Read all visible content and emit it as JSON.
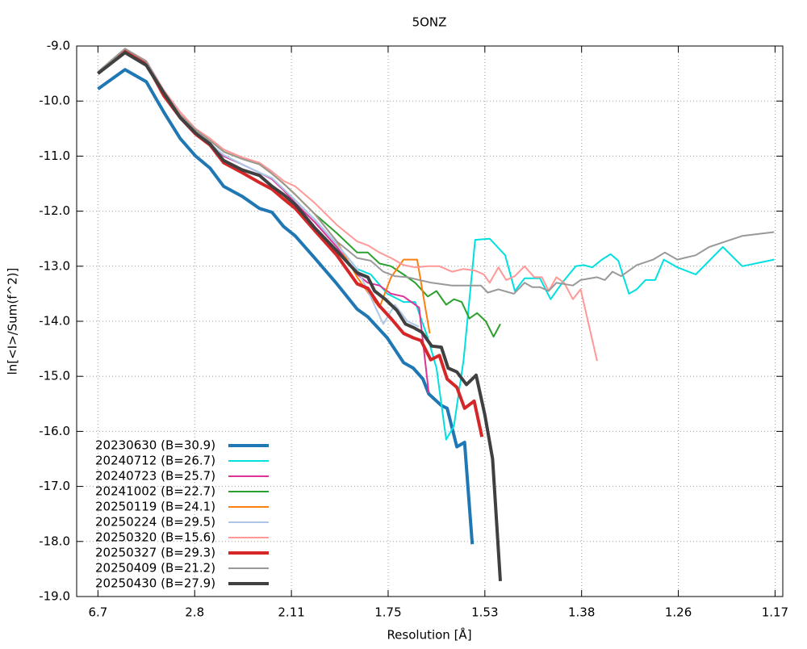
{
  "chart_data": {
    "type": "line",
    "title": "5ONZ",
    "x_label": "Resolution [Å]",
    "y_label": "ln[<I>/Sum(f^2)]",
    "xlim": [
      0,
      0.73
    ],
    "ylim": [
      -19,
      -9
    ],
    "grid": true,
    "legend_position": "lower-left",
    "xticks": [
      {
        "value": 0.022,
        "label": "6.7"
      },
      {
        "value": 0.122,
        "label": "2.8"
      },
      {
        "value": 0.222,
        "label": "2.11"
      },
      {
        "value": 0.322,
        "label": "1.75"
      },
      {
        "value": 0.422,
        "label": "1.53"
      },
      {
        "value": 0.522,
        "label": "1.38"
      },
      {
        "value": 0.622,
        "label": "1.26"
      },
      {
        "value": 0.722,
        "label": "1.17"
      }
    ],
    "yticks": [
      {
        "value": -9,
        "label": "-9.0"
      },
      {
        "value": -10,
        "label": "-10.0"
      },
      {
        "value": -11,
        "label": "-11.0"
      },
      {
        "value": -12,
        "label": "-12.0"
      },
      {
        "value": -13,
        "label": "-13.0"
      },
      {
        "value": -14,
        "label": "-14.0"
      },
      {
        "value": -15,
        "label": "-15.0"
      },
      {
        "value": -16,
        "label": "-16.0"
      },
      {
        "value": -17,
        "label": "-17.0"
      },
      {
        "value": -18,
        "label": "-18.0"
      },
      {
        "value": -19,
        "label": "-19.0"
      }
    ],
    "series": [
      {
        "name": "20230630 (B=30.9)",
        "color": "#1f77b4",
        "line_width": 4,
        "x": [
          0.022,
          0.05,
          0.072,
          0.09,
          0.107,
          0.123,
          0.138,
          0.152,
          0.171,
          0.189,
          0.202,
          0.214,
          0.226,
          0.246,
          0.269,
          0.29,
          0.301,
          0.321,
          0.338,
          0.348,
          0.358,
          0.364,
          0.377,
          0.383,
          0.393,
          0.401,
          0.409
        ],
        "values": [
          -9.78,
          -9.43,
          -9.65,
          -10.2,
          -10.68,
          -11.0,
          -11.22,
          -11.55,
          -11.73,
          -11.95,
          -12.02,
          -12.28,
          -12.45,
          -12.85,
          -13.32,
          -13.78,
          -13.92,
          -14.3,
          -14.75,
          -14.85,
          -15.05,
          -15.32,
          -15.53,
          -15.58,
          -16.28,
          -16.2,
          -18.05
        ]
      },
      {
        "name": "20240712 (B=26.7)",
        "color": "#00e0e0",
        "line_width": 2,
        "x": [
          0.022,
          0.05,
          0.072,
          0.09,
          0.107,
          0.123,
          0.138,
          0.152,
          0.171,
          0.189,
          0.202,
          0.214,
          0.226,
          0.246,
          0.269,
          0.29,
          0.304,
          0.321,
          0.338,
          0.35,
          0.363,
          0.372,
          0.382,
          0.39,
          0.4,
          0.412,
          0.427,
          0.443,
          0.453,
          0.463,
          0.479,
          0.49,
          0.502,
          0.516,
          0.524,
          0.533,
          0.543,
          0.552,
          0.56,
          0.571,
          0.579,
          0.588,
          0.598,
          0.607,
          0.621,
          0.64,
          0.668,
          0.688,
          0.721
        ],
        "values": [
          -9.48,
          -9.08,
          -9.3,
          -9.85,
          -10.28,
          -10.58,
          -10.78,
          -10.98,
          -11.15,
          -11.3,
          -11.4,
          -11.6,
          -11.8,
          -12.15,
          -12.6,
          -13.05,
          -13.15,
          -13.5,
          -13.65,
          -13.65,
          -14.3,
          -14.85,
          -16.15,
          -15.9,
          -14.7,
          -12.52,
          -12.5,
          -12.8,
          -13.45,
          -13.22,
          -13.22,
          -13.6,
          -13.3,
          -13.0,
          -12.98,
          -13.02,
          -12.88,
          -12.78,
          -12.9,
          -13.5,
          -13.42,
          -13.25,
          -13.25,
          -12.88,
          -13.02,
          -13.15,
          -12.65,
          -13.0,
          -12.88
        ]
      },
      {
        "name": "20240723 (B=25.7)",
        "color": "#dd3497",
        "line_width": 2,
        "x": [
          0.022,
          0.05,
          0.072,
          0.09,
          0.107,
          0.123,
          0.138,
          0.152,
          0.171,
          0.189,
          0.202,
          0.214,
          0.226,
          0.246,
          0.269,
          0.29,
          0.301,
          0.313,
          0.325,
          0.338,
          0.346,
          0.354,
          0.364
        ],
        "values": [
          -9.5,
          -9.1,
          -9.32,
          -9.88,
          -10.3,
          -10.6,
          -10.8,
          -11.0,
          -11.15,
          -11.3,
          -11.42,
          -11.62,
          -11.85,
          -12.2,
          -12.65,
          -13.15,
          -13.3,
          -13.35,
          -13.5,
          -13.55,
          -13.65,
          -13.75,
          -15.3
        ]
      },
      {
        "name": "20241002 (B=22.7)",
        "color": "#2ca02c",
        "line_width": 2,
        "x": [
          0.022,
          0.05,
          0.072,
          0.09,
          0.107,
          0.123,
          0.138,
          0.152,
          0.171,
          0.189,
          0.202,
          0.214,
          0.226,
          0.246,
          0.269,
          0.29,
          0.301,
          0.313,
          0.325,
          0.338,
          0.35,
          0.363,
          0.372,
          0.382,
          0.39,
          0.398,
          0.406,
          0.414,
          0.423,
          0.431,
          0.438
        ],
        "values": [
          -9.47,
          -9.05,
          -9.28,
          -9.82,
          -10.25,
          -10.52,
          -10.72,
          -10.92,
          -11.05,
          -11.15,
          -11.32,
          -11.5,
          -11.7,
          -12.05,
          -12.4,
          -12.75,
          -12.75,
          -12.95,
          -13.0,
          -13.15,
          -13.3,
          -13.55,
          -13.45,
          -13.7,
          -13.6,
          -13.65,
          -13.95,
          -13.85,
          -14.0,
          -14.28,
          -14.05
        ]
      },
      {
        "name": "20250119 (B=24.1)",
        "color": "#ff7f0e",
        "line_width": 2,
        "x": [
          0.022,
          0.05,
          0.072,
          0.09,
          0.107,
          0.123,
          0.138,
          0.152,
          0.171,
          0.189,
          0.202,
          0.214,
          0.226,
          0.246,
          0.269,
          0.29,
          0.304,
          0.313,
          0.325,
          0.338,
          0.352,
          0.365
        ],
        "values": [
          -9.47,
          -9.05,
          -9.28,
          -9.82,
          -10.25,
          -10.52,
          -10.72,
          -10.92,
          -11.05,
          -11.15,
          -11.32,
          -11.5,
          -11.7,
          -12.05,
          -12.55,
          -13.2,
          -13.55,
          -13.75,
          -13.2,
          -12.88,
          -12.88,
          -14.22
        ]
      },
      {
        "name": "20250224 (B=29.5)",
        "color": "#aec7e8",
        "line_width": 2,
        "x": [
          0.022,
          0.05,
          0.072,
          0.09,
          0.107,
          0.123,
          0.138,
          0.152,
          0.171,
          0.189,
          0.202,
          0.214,
          0.226,
          0.246,
          0.269,
          0.29,
          0.301,
          0.317,
          0.329,
          0.342,
          0.354
        ],
        "values": [
          -9.48,
          -9.08,
          -9.3,
          -9.85,
          -10.28,
          -10.58,
          -10.78,
          -10.98,
          -11.15,
          -11.3,
          -11.4,
          -11.6,
          -11.8,
          -12.15,
          -12.6,
          -13.05,
          -13.45,
          -14.05,
          -13.7,
          -14.0,
          -14.1
        ]
      },
      {
        "name": "20250320 (B=15.6)",
        "color": "#ff9896",
        "line_width": 2,
        "x": [
          0.022,
          0.05,
          0.072,
          0.09,
          0.107,
          0.123,
          0.138,
          0.152,
          0.171,
          0.189,
          0.202,
          0.214,
          0.226,
          0.246,
          0.269,
          0.29,
          0.301,
          0.313,
          0.325,
          0.338,
          0.35,
          0.363,
          0.375,
          0.388,
          0.4,
          0.412,
          0.421,
          0.427,
          0.436,
          0.444,
          0.453,
          0.463,
          0.473,
          0.481,
          0.488,
          0.496,
          0.504,
          0.513,
          0.521,
          0.538
        ],
        "values": [
          -9.47,
          -9.05,
          -9.27,
          -9.8,
          -10.2,
          -10.5,
          -10.68,
          -10.88,
          -11.02,
          -11.12,
          -11.28,
          -11.45,
          -11.55,
          -11.85,
          -12.25,
          -12.55,
          -12.62,
          -12.75,
          -12.85,
          -12.98,
          -13.02,
          -13.0,
          -13.0,
          -13.1,
          -13.05,
          -13.08,
          -13.15,
          -13.3,
          -13.02,
          -13.25,
          -13.18,
          -13.0,
          -13.2,
          -13.2,
          -13.45,
          -13.2,
          -13.3,
          -13.6,
          -13.42,
          -14.72
        ]
      },
      {
        "name": "20250327 (B=29.3)",
        "color": "#d62728",
        "line_width": 4,
        "x": [
          0.022,
          0.05,
          0.072,
          0.09,
          0.107,
          0.123,
          0.138,
          0.152,
          0.171,
          0.189,
          0.202,
          0.214,
          0.226,
          0.246,
          0.269,
          0.29,
          0.301,
          0.313,
          0.325,
          0.338,
          0.348,
          0.356,
          0.366,
          0.375,
          0.383,
          0.393,
          0.401,
          0.411,
          0.419
        ],
        "values": [
          -9.5,
          -9.08,
          -9.32,
          -9.9,
          -10.3,
          -10.6,
          -10.8,
          -11.12,
          -11.3,
          -11.48,
          -11.6,
          -11.78,
          -11.95,
          -12.35,
          -12.8,
          -13.32,
          -13.4,
          -13.72,
          -13.95,
          -14.22,
          -14.3,
          -14.35,
          -14.7,
          -14.62,
          -15.05,
          -15.2,
          -15.58,
          -15.45,
          -16.1
        ]
      },
      {
        "name": "20250409 (B=21.2)",
        "color": "#999999",
        "line_width": 2,
        "x": [
          0.022,
          0.05,
          0.072,
          0.09,
          0.107,
          0.123,
          0.138,
          0.152,
          0.171,
          0.189,
          0.202,
          0.214,
          0.226,
          0.246,
          0.269,
          0.29,
          0.304,
          0.317,
          0.329,
          0.342,
          0.354,
          0.367,
          0.388,
          0.4,
          0.418,
          0.425,
          0.436,
          0.452,
          0.463,
          0.471,
          0.479,
          0.488,
          0.496,
          0.513,
          0.521,
          0.538,
          0.546,
          0.554,
          0.563,
          0.579,
          0.596,
          0.608,
          0.621,
          0.64,
          0.654,
          0.671,
          0.688,
          0.721
        ],
        "values": [
          -9.47,
          -9.05,
          -9.28,
          -9.82,
          -10.25,
          -10.52,
          -10.72,
          -10.92,
          -11.05,
          -11.15,
          -11.32,
          -11.5,
          -11.7,
          -12.05,
          -12.55,
          -12.85,
          -12.9,
          -13.1,
          -13.18,
          -13.2,
          -13.25,
          -13.3,
          -13.35,
          -13.35,
          -13.35,
          -13.48,
          -13.42,
          -13.5,
          -13.3,
          -13.38,
          -13.38,
          -13.45,
          -13.3,
          -13.35,
          -13.25,
          -13.2,
          -13.25,
          -13.1,
          -13.18,
          -12.98,
          -12.88,
          -12.75,
          -12.88,
          -12.8,
          -12.65,
          -12.55,
          -12.45,
          -12.38
        ]
      },
      {
        "name": "20250430 (B=27.9)",
        "color": "#404040",
        "line_width": 4,
        "x": [
          0.022,
          0.05,
          0.072,
          0.09,
          0.107,
          0.123,
          0.138,
          0.152,
          0.171,
          0.189,
          0.202,
          0.214,
          0.226,
          0.246,
          0.269,
          0.29,
          0.301,
          0.308,
          0.319,
          0.331,
          0.34,
          0.349,
          0.357,
          0.367,
          0.377,
          0.384,
          0.393,
          0.403,
          0.413,
          0.422,
          0.43,
          0.438
        ],
        "values": [
          -9.5,
          -9.12,
          -9.35,
          -9.85,
          -10.3,
          -10.58,
          -10.78,
          -11.08,
          -11.25,
          -11.35,
          -11.55,
          -11.7,
          -11.88,
          -12.3,
          -12.72,
          -13.12,
          -13.2,
          -13.45,
          -13.6,
          -13.8,
          -14.05,
          -14.12,
          -14.2,
          -14.45,
          -14.47,
          -14.85,
          -14.92,
          -15.15,
          -14.98,
          -15.7,
          -16.5,
          -18.72
        ]
      }
    ]
  }
}
